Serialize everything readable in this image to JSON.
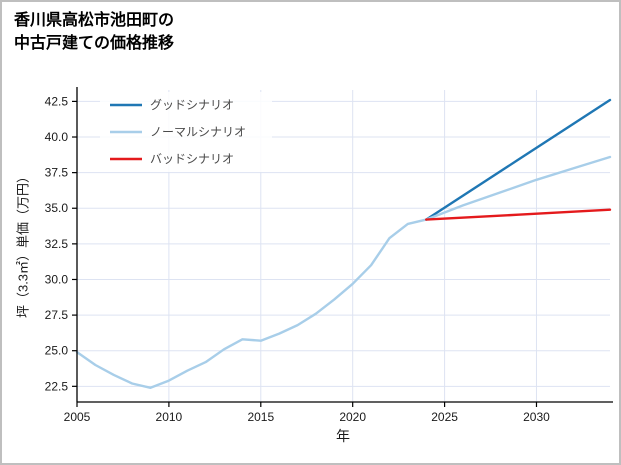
{
  "title": {
    "line1": "香川県高松市池田町の",
    "line2": "中古戸建ての価格推移"
  },
  "chart_data": {
    "type": "line",
    "title": "香川県高松市池田町の中古戸建ての価格推移",
    "xlabel": "年",
    "ylabel": "坪（3.3㎡）単価（万円）",
    "xlim": [
      2005,
      2034
    ],
    "ylim": [
      21.4,
      43.3
    ],
    "xticks": [
      2005,
      2010,
      2015,
      2020,
      2025,
      2030
    ],
    "yticks": [
      22.5,
      25.0,
      27.5,
      30.0,
      32.5,
      35.0,
      37.5,
      40.0,
      42.5
    ],
    "grid": true,
    "grid_color": "#dde3f2",
    "axis_color": "#000000",
    "legend_position": "upper-left",
    "series": [
      {
        "name": "グッドシナリオ",
        "color": "#1f77b4",
        "x": [
          2024,
          2029,
          2034
        ],
        "y": [
          34.2,
          38.4,
          42.6
        ]
      },
      {
        "name": "ノーマルシナリオ",
        "color": "#a8cee9",
        "x": [
          2005,
          2006,
          2007,
          2008,
          2009,
          2010,
          2011,
          2012,
          2013,
          2014,
          2015,
          2016,
          2017,
          2018,
          2019,
          2020,
          2021,
          2022,
          2023,
          2024,
          2026,
          2028,
          2030,
          2032,
          2034
        ],
        "y": [
          24.9,
          24.0,
          23.3,
          22.7,
          22.4,
          22.9,
          23.6,
          24.2,
          25.1,
          25.8,
          25.7,
          26.2,
          26.8,
          27.6,
          28.6,
          29.7,
          31.0,
          32.9,
          33.9,
          34.2,
          35.2,
          36.1,
          37.0,
          37.8,
          38.6
        ]
      },
      {
        "name": "バッドシナリオ",
        "color": "#e41a1c",
        "x": [
          2024,
          2029,
          2034
        ],
        "y": [
          34.2,
          34.55,
          34.9
        ]
      }
    ]
  }
}
